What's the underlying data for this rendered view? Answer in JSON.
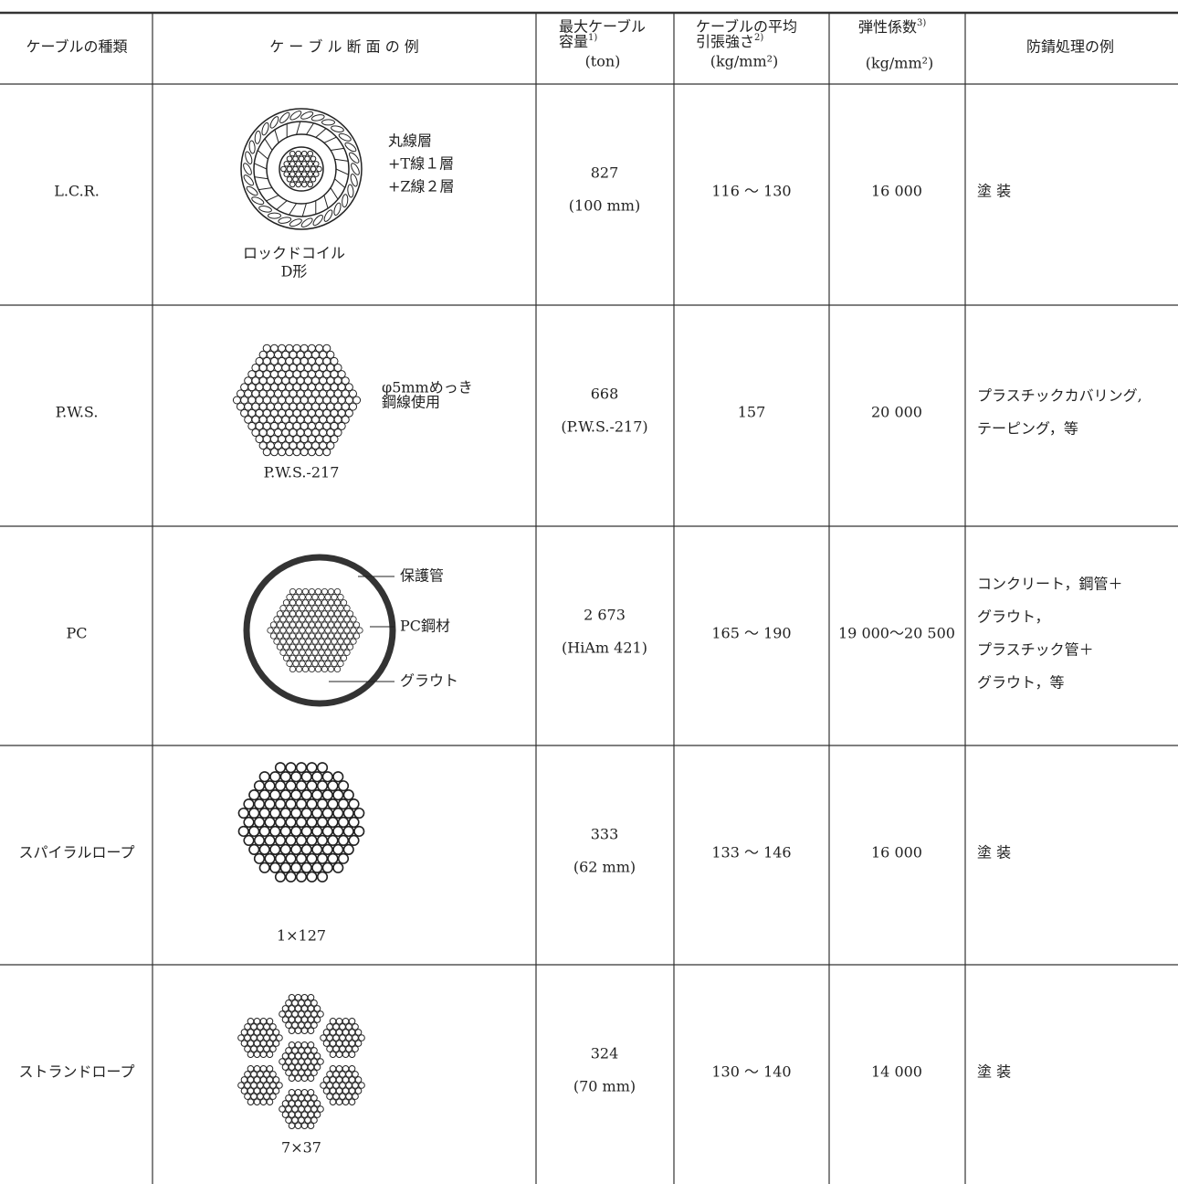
{
  "header": {
    "columns": [
      {
        "lines": [
          "ケーブルの種類"
        ]
      },
      {
        "lines": [
          "ケ ー ブ ル 断 面 の 例"
        ]
      },
      {
        "lines": [
          "最大ケーブル",
          "容量"
        ],
        "note": "1)",
        "unit": "(ton)"
      },
      {
        "lines": [
          "ケーブルの平均",
          "引張強さ"
        ],
        "note": "2)",
        "unit": "(kg/mm²)"
      },
      {
        "lines": [
          "弾性係数"
        ],
        "note": "3)",
        "unit": "(kg/mm²)"
      },
      {
        "lines": [
          "防錆処理の例"
        ]
      }
    ]
  },
  "table": {
    "rows": [
      {
        "type": "L.C.R.",
        "section": {
          "labels": [
            "丸線層",
            "+T線１層",
            "+Z線２層"
          ],
          "caption": [
            "ロックドコイル",
            "D形"
          ]
        },
        "capacity": [
          "827",
          "(100 mm)"
        ],
        "strength": "116 ～ 130",
        "modulus": "16 000",
        "protection": [
          "塗 装"
        ]
      },
      {
        "type": "P.W.S.",
        "section": {
          "labels": [
            "φ5mmめっき",
            "鋼線使用"
          ],
          "caption": [
            "P.W.S.-217"
          ]
        },
        "capacity": [
          "668",
          "(P.W.S.-217)"
        ],
        "strength": "157",
        "modulus": "20 000",
        "protection": [
          "プラスチックカバリング,",
          "テーピング，等"
        ]
      },
      {
        "type": "PC",
        "section": {
          "labels": [
            "保護管",
            "PC鋼材",
            "グラウト"
          ],
          "caption": []
        },
        "capacity": [
          "2 673",
          "(HiAm 421)"
        ],
        "strength": "165 ～ 190",
        "modulus": "19 000～20 500",
        "protection": [
          "コンクリート，鋼管＋",
          "グラウト，",
          "プラスチック管＋",
          "グラウト，等"
        ]
      },
      {
        "type": "スパイラルロープ",
        "section": {
          "labels": [],
          "caption": [
            "1×127"
          ]
        },
        "capacity": [
          "333",
          "(62 mm)"
        ],
        "strength": "133 ～ 146",
        "modulus": "16 000",
        "protection": [
          "塗 装"
        ]
      },
      {
        "type": "ストランドロープ",
        "section": {
          "labels": [],
          "caption": [
            "7×37"
          ]
        },
        "capacity": [
          "324",
          "(70 mm)"
        ],
        "strength": "130 ～ 140",
        "modulus": "14 000",
        "protection": [
          "塗 装"
        ]
      }
    ]
  }
}
